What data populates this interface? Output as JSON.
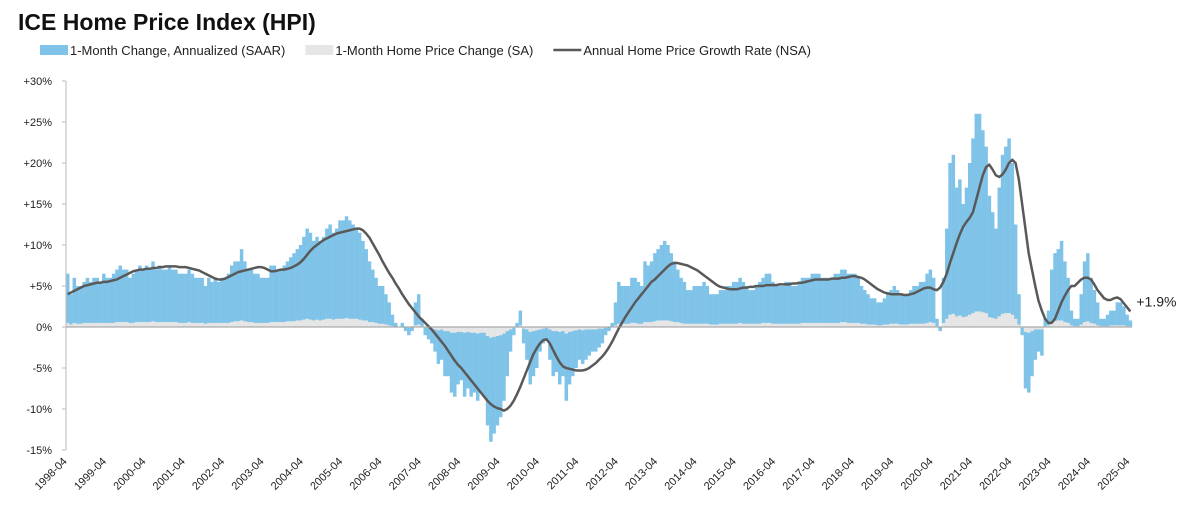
{
  "chart_data": {
    "type": "bar-line",
    "title": "ICE Home Price Index (HPI)",
    "legend": "top",
    "grid": false,
    "ylim": [
      -15,
      30
    ],
    "yticks": [
      {
        "value": 30,
        "label": "+30%"
      },
      {
        "value": 25,
        "label": "+25%"
      },
      {
        "value": 20,
        "label": "+20%"
      },
      {
        "value": 15,
        "label": "+15%"
      },
      {
        "value": 10,
        "label": "+10%"
      },
      {
        "value": 5,
        "label": "+5%"
      },
      {
        "value": 0,
        "label": "0%"
      },
      {
        "value": -5,
        "label": "-5%"
      },
      {
        "value": -10,
        "label": "-10%"
      },
      {
        "value": -15,
        "label": "-15%"
      }
    ],
    "categories": [
      "1998-04",
      null,
      null,
      null,
      null,
      null,
      null,
      null,
      null,
      null,
      null,
      null,
      "1999-04",
      null,
      null,
      null,
      null,
      null,
      null,
      null,
      null,
      null,
      null,
      null,
      "2000-04",
      null,
      null,
      null,
      null,
      null,
      null,
      null,
      null,
      null,
      null,
      null,
      "2001-04",
      null,
      null,
      null,
      null,
      null,
      null,
      null,
      null,
      null,
      null,
      null,
      "2002-04",
      null,
      null,
      null,
      null,
      null,
      null,
      null,
      null,
      null,
      null,
      null,
      "2003-04",
      null,
      null,
      null,
      null,
      null,
      null,
      null,
      null,
      null,
      null,
      null,
      "2004-04",
      null,
      null,
      null,
      null,
      null,
      null,
      null,
      null,
      null,
      null,
      null,
      "2005-04",
      null,
      null,
      null,
      null,
      null,
      null,
      null,
      null,
      null,
      null,
      null,
      "2006-04",
      null,
      null,
      null,
      null,
      null,
      null,
      null,
      null,
      null,
      null,
      null,
      "2007-04",
      null,
      null,
      null,
      null,
      null,
      null,
      null,
      null,
      null,
      null,
      null,
      "2008-04",
      null,
      null,
      null,
      null,
      null,
      null,
      null,
      null,
      null,
      null,
      null,
      "2009-04",
      null,
      null,
      null,
      null,
      null,
      null,
      null,
      null,
      null,
      null,
      null,
      "2010-04",
      null,
      null,
      null,
      null,
      null,
      null,
      null,
      null,
      null,
      null,
      null,
      "2011-04",
      null,
      null,
      null,
      null,
      null,
      null,
      null,
      null,
      null,
      null,
      null,
      "2012-04",
      null,
      null,
      null,
      null,
      null,
      null,
      null,
      null,
      null,
      null,
      null,
      "2013-04",
      null,
      null,
      null,
      null,
      null,
      null,
      null,
      null,
      null,
      null,
      null,
      "2014-04",
      null,
      null,
      null,
      null,
      null,
      null,
      null,
      null,
      null,
      null,
      null,
      "2015-04",
      null,
      null,
      null,
      null,
      null,
      null,
      null,
      null,
      null,
      null,
      null,
      "2016-04",
      null,
      null,
      null,
      null,
      null,
      null,
      null,
      null,
      null,
      null,
      null,
      "2017-04",
      null,
      null,
      null,
      null,
      null,
      null,
      null,
      null,
      null,
      null,
      null,
      "2018-04",
      null,
      null,
      null,
      null,
      null,
      null,
      null,
      null,
      null,
      null,
      null,
      "2019-04",
      null,
      null,
      null,
      null,
      null,
      null,
      null,
      null,
      null,
      null,
      null,
      "2020-04",
      null,
      null,
      null,
      null,
      null,
      null,
      null,
      null,
      null,
      null,
      null,
      "2021-04",
      null,
      null,
      null,
      null,
      null,
      null,
      null,
      null,
      null,
      null,
      null,
      "2022-04",
      null,
      null,
      null,
      null,
      null,
      null,
      null,
      null,
      null,
      null,
      null,
      "2023-04",
      null,
      null,
      null,
      null,
      null,
      null,
      null,
      null,
      null,
      null,
      null,
      "2024-04",
      null,
      null,
      null,
      null,
      null,
      null,
      null,
      null,
      null,
      null,
      null,
      "2025-04"
    ],
    "series": [
      {
        "name": "1-Month Change, Annualized (SAAR)",
        "type": "bar",
        "color": "#7fc3e8",
        "values": [
          6.5,
          4,
          6,
          5,
          5,
          5.5,
          6,
          5.5,
          6,
          6,
          5.5,
          6.5,
          6,
          6,
          6.5,
          7,
          7.5,
          7,
          7,
          6,
          6.5,
          7,
          7.5,
          7,
          7.5,
          7,
          8,
          7,
          7.5,
          7,
          7,
          7.5,
          7,
          7,
          6.5,
          6.5,
          6.5,
          7,
          6.5,
          6,
          6,
          6,
          5,
          6,
          5.5,
          6,
          5.5,
          6,
          6,
          6.5,
          7.5,
          8,
          8,
          9.5,
          8,
          7,
          7,
          6.5,
          6.5,
          6,
          6,
          6,
          7.5,
          7.5,
          7,
          7,
          7.5,
          8,
          8.5,
          9,
          9.5,
          10,
          11,
          12,
          11.5,
          10.5,
          11,
          10.5,
          11,
          12,
          12.5,
          11.5,
          12,
          13,
          13,
          13.5,
          13,
          12.5,
          12,
          11.5,
          10.5,
          9.5,
          8,
          7,
          6,
          5,
          5,
          4,
          3,
          1.5,
          0.5,
          0,
          0.5,
          -0.5,
          -1,
          -0.5,
          3,
          4,
          1,
          -1,
          -1.5,
          -2,
          -3,
          -4.5,
          -4,
          -6,
          -6,
          -8,
          -8.5,
          -7,
          -6.5,
          -8.5,
          -7.5,
          -8.5,
          -8,
          -9,
          -8,
          -8.5,
          -12,
          -14,
          -13,
          -12,
          -11,
          -9,
          -6,
          -3,
          -1,
          0.5,
          2,
          -2,
          -4,
          -7,
          -6,
          -5,
          -3,
          -2,
          -1.5,
          -4,
          -6,
          -5.5,
          -7,
          -6,
          -9,
          -7,
          -6,
          -5,
          -4,
          -4.5,
          -4,
          -3.5,
          -3,
          -3,
          -2.5,
          -2,
          -1,
          -0.5,
          0.5,
          3,
          5.5,
          5,
          5,
          5,
          6,
          6,
          5.5,
          5,
          8,
          7.5,
          8,
          9,
          9.5,
          10,
          10.5,
          10,
          9,
          8,
          7,
          6,
          5.5,
          4.5,
          4.5,
          5,
          5,
          5,
          5.5,
          5,
          4,
          4,
          4,
          4.5,
          4.5,
          5,
          5,
          5.5,
          5.5,
          6,
          5.5,
          5,
          4.5,
          4.5,
          5,
          5.5,
          6,
          6.5,
          6.5,
          5.5,
          5,
          5,
          5,
          5.5,
          5.5,
          5,
          5,
          5.5,
          6,
          6,
          6,
          6.5,
          6.5,
          6.5,
          6,
          6,
          6,
          6,
          6.5,
          6.5,
          7,
          7,
          6.5,
          6.5,
          6.5,
          6,
          5,
          4.5,
          4,
          3.5,
          3.5,
          3,
          3,
          3.5,
          4,
          4.5,
          5,
          4.5,
          4,
          4,
          4,
          4.5,
          5,
          5,
          5.5,
          5.5,
          6.5,
          7,
          6,
          1,
          -0.5,
          6,
          12,
          20,
          21,
          17,
          18,
          15,
          17,
          20,
          23,
          26,
          26,
          24,
          22,
          16,
          14,
          12,
          17,
          21,
          22,
          23,
          20,
          12.5,
          4,
          -1,
          -7.5,
          -8,
          -6,
          -4,
          -3,
          -3.5,
          1,
          2,
          7,
          9,
          9.5,
          10.5,
          8,
          6,
          2,
          1,
          1,
          4,
          8,
          9,
          6,
          4.5,
          3,
          1,
          1,
          1.5,
          2,
          2,
          3,
          3,
          2.5,
          1.5,
          0.8
        ]
      },
      {
        "name": "1-Month Home Price Change (SA)",
        "type": "bar",
        "color": "#e6e6e6",
        "values": [
          0.5,
          0.3,
          0.5,
          0.4,
          0.4,
          0.5,
          0.5,
          0.5,
          0.5,
          0.5,
          0.5,
          0.5,
          0.5,
          0.5,
          0.5,
          0.6,
          0.6,
          0.6,
          0.6,
          0.5,
          0.5,
          0.6,
          0.6,
          0.6,
          0.6,
          0.6,
          0.7,
          0.6,
          0.6,
          0.6,
          0.6,
          0.6,
          0.6,
          0.6,
          0.5,
          0.5,
          0.5,
          0.6,
          0.5,
          0.5,
          0.5,
          0.5,
          0.4,
          0.5,
          0.5,
          0.5,
          0.5,
          0.5,
          0.5,
          0.5,
          0.6,
          0.7,
          0.7,
          0.8,
          0.7,
          0.6,
          0.6,
          0.5,
          0.5,
          0.5,
          0.5,
          0.5,
          0.6,
          0.6,
          0.6,
          0.6,
          0.6,
          0.7,
          0.7,
          0.7,
          0.8,
          0.8,
          0.9,
          1.0,
          0.9,
          0.8,
          0.9,
          0.8,
          0.9,
          1.0,
          1.0,
          0.9,
          1.0,
          1.0,
          1.0,
          1.1,
          1.0,
          1.0,
          1.0,
          0.9,
          0.8,
          0.8,
          0.6,
          0.6,
          0.5,
          0.4,
          0.4,
          0.3,
          0.2,
          0.1,
          0.0,
          0.0,
          0.0,
          0.0,
          -0.1,
          0.0,
          0.2,
          0.3,
          0.1,
          -0.1,
          -0.1,
          -0.2,
          -0.3,
          -0.4,
          -0.3,
          -0.5,
          -0.5,
          -0.7,
          -0.7,
          -0.6,
          -0.6,
          -0.7,
          -0.6,
          -0.7,
          -0.7,
          -0.8,
          -0.7,
          -0.7,
          -1.1,
          -1.3,
          -1.2,
          -1.1,
          -1.0,
          -0.8,
          -0.5,
          -0.3,
          -0.1,
          0.0,
          0.2,
          -0.2,
          -0.3,
          -0.6,
          -0.5,
          -0.4,
          -0.3,
          -0.2,
          -0.1,
          -0.3,
          -0.5,
          -0.5,
          -0.6,
          -0.5,
          -0.8,
          -0.6,
          -0.5,
          -0.4,
          -0.3,
          -0.4,
          -0.3,
          -0.3,
          -0.3,
          -0.3,
          -0.2,
          -0.2,
          -0.1,
          0.0,
          0.0,
          0.2,
          0.4,
          0.4,
          0.4,
          0.4,
          0.5,
          0.5,
          0.4,
          0.4,
          0.6,
          0.6,
          0.6,
          0.7,
          0.8,
          0.8,
          0.8,
          0.8,
          0.7,
          0.6,
          0.6,
          0.5,
          0.4,
          0.4,
          0.4,
          0.4,
          0.4,
          0.4,
          0.4,
          0.4,
          0.3,
          0.3,
          0.3,
          0.4,
          0.4,
          0.4,
          0.4,
          0.4,
          0.4,
          0.5,
          0.4,
          0.4,
          0.4,
          0.4,
          0.4,
          0.4,
          0.5,
          0.5,
          0.5,
          0.4,
          0.4,
          0.4,
          0.4,
          0.4,
          0.4,
          0.4,
          0.4,
          0.4,
          0.5,
          0.5,
          0.5,
          0.5,
          0.5,
          0.5,
          0.5,
          0.5,
          0.5,
          0.5,
          0.5,
          0.5,
          0.6,
          0.6,
          0.5,
          0.5,
          0.5,
          0.5,
          0.4,
          0.4,
          0.3,
          0.3,
          0.3,
          0.2,
          0.2,
          0.3,
          0.3,
          0.4,
          0.4,
          0.4,
          0.3,
          0.3,
          0.3,
          0.4,
          0.4,
          0.4,
          0.4,
          0.4,
          0.5,
          0.6,
          0.5,
          0.1,
          0.0,
          0.5,
          1.0,
          1.5,
          1.6,
          1.3,
          1.4,
          1.2,
          1.3,
          1.5,
          1.7,
          1.9,
          1.9,
          1.8,
          1.7,
          1.2,
          1.1,
          1.0,
          1.3,
          1.6,
          1.7,
          1.7,
          1.5,
          1.0,
          0.3,
          -0.1,
          -0.6,
          -0.7,
          -0.5,
          -0.3,
          -0.3,
          -0.3,
          0.1,
          0.2,
          0.6,
          0.7,
          0.8,
          0.8,
          0.6,
          0.5,
          0.2,
          0.1,
          0.1,
          0.3,
          0.6,
          0.7,
          0.5,
          0.4,
          0.2,
          0.1,
          0.1,
          0.1,
          0.2,
          0.2,
          0.2,
          0.2,
          0.2,
          0.1,
          0.1
        ]
      },
      {
        "name": "Annual Home Price Growth Rate (NSA)",
        "type": "line",
        "color": "#595959",
        "values": [
          4.0,
          4.2,
          4.4,
          4.6,
          4.8,
          5.0,
          5.1,
          5.2,
          5.3,
          5.4,
          5.4,
          5.5,
          5.5,
          5.6,
          5.7,
          5.8,
          6.0,
          6.2,
          6.4,
          6.6,
          6.8,
          6.9,
          7.0,
          7.0,
          7.1,
          7.1,
          7.2,
          7.2,
          7.3,
          7.3,
          7.4,
          7.4,
          7.4,
          7.4,
          7.3,
          7.3,
          7.3,
          7.2,
          7.1,
          7.0,
          6.9,
          6.7,
          6.5,
          6.3,
          6.1,
          5.9,
          5.8,
          5.8,
          5.9,
          6.1,
          6.3,
          6.5,
          6.7,
          6.8,
          6.9,
          7.0,
          7.1,
          7.2,
          7.3,
          7.3,
          7.2,
          7.0,
          6.8,
          6.8,
          6.9,
          7.0,
          7.0,
          7.1,
          7.2,
          7.4,
          7.6,
          7.9,
          8.3,
          8.8,
          9.3,
          9.7,
          10.0,
          10.3,
          10.6,
          10.8,
          11.0,
          11.2,
          11.4,
          11.5,
          11.6,
          11.7,
          11.8,
          11.9,
          12.0,
          12.0,
          11.8,
          11.4,
          10.9,
          10.2,
          9.5,
          8.8,
          8.0,
          7.3,
          6.6,
          6.0,
          5.3,
          4.7,
          4.0,
          3.4,
          2.8,
          2.3,
          1.8,
          1.3,
          0.9,
          0.5,
          0.1,
          -0.3,
          -0.8,
          -1.3,
          -1.8,
          -2.3,
          -2.9,
          -3.5,
          -4.1,
          -4.6,
          -5.0,
          -5.5,
          -6.0,
          -6.5,
          -7.0,
          -7.5,
          -8.0,
          -8.5,
          -9.0,
          -9.4,
          -9.7,
          -9.9,
          -10.0,
          -10.2,
          -10.0,
          -9.6,
          -9.0,
          -8.2,
          -7.3,
          -6.3,
          -5.3,
          -4.3,
          -3.3,
          -2.6,
          -2.0,
          -1.6,
          -1.5,
          -2.0,
          -2.8,
          -3.6,
          -4.3,
          -4.8,
          -5.0,
          -5.1,
          -5.2,
          -5.3,
          -5.3,
          -5.3,
          -5.2,
          -5.0,
          -4.7,
          -4.4,
          -4.0,
          -3.6,
          -3.1,
          -2.5,
          -1.8,
          -1.0,
          -0.2,
          0.5,
          1.2,
          1.8,
          2.4,
          3.0,
          3.5,
          4.0,
          4.5,
          5.0,
          5.5,
          5.8,
          6.2,
          6.6,
          7.0,
          7.4,
          7.7,
          7.8,
          7.8,
          7.7,
          7.6,
          7.5,
          7.3,
          7.1,
          6.9,
          6.6,
          6.3,
          6.0,
          5.7,
          5.4,
          5.1,
          4.9,
          4.8,
          4.7,
          4.6,
          4.6,
          4.6,
          4.7,
          4.8,
          4.8,
          4.9,
          4.9,
          5.0,
          5.0,
          5.0,
          5.1,
          5.1,
          5.1,
          5.1,
          5.2,
          5.2,
          5.2,
          5.2,
          5.3,
          5.3,
          5.4,
          5.4,
          5.5,
          5.6,
          5.7,
          5.8,
          5.8,
          5.8,
          5.8,
          5.8,
          5.9,
          5.9,
          5.9,
          6.0,
          6.0,
          6.1,
          6.2,
          6.2,
          6.1,
          6.0,
          5.8,
          5.5,
          5.2,
          4.9,
          4.6,
          4.4,
          4.2,
          4.1,
          4.0,
          4.0,
          4.0,
          4.0,
          3.9,
          3.9,
          4.0,
          4.1,
          4.3,
          4.5,
          4.7,
          4.8,
          4.8,
          4.6,
          4.5,
          4.8,
          5.5,
          6.5,
          7.8,
          9.0,
          10.2,
          11.3,
          12.2,
          12.8,
          13.3,
          14.0,
          15.5,
          17.0,
          18.5,
          19.5,
          19.8,
          19.2,
          18.5,
          18.3,
          18.6,
          19.2,
          20.0,
          20.4,
          20.0,
          18.0,
          15.0,
          12.0,
          9.0,
          7.0,
          5.0,
          3.2,
          2.0,
          1.0,
          0.5,
          0.5,
          1.0,
          2.0,
          3.0,
          3.8,
          4.5,
          5.0,
          5.0,
          5.4,
          5.8,
          6.0,
          6.0,
          5.8,
          5.2,
          4.5,
          4.0,
          3.5,
          3.3,
          3.3,
          3.5,
          3.6,
          3.4,
          2.9,
          2.4,
          1.9
        ]
      }
    ],
    "annotations": [
      {
        "text": "+1.9%",
        "series": 2,
        "index": 324
      }
    ]
  }
}
